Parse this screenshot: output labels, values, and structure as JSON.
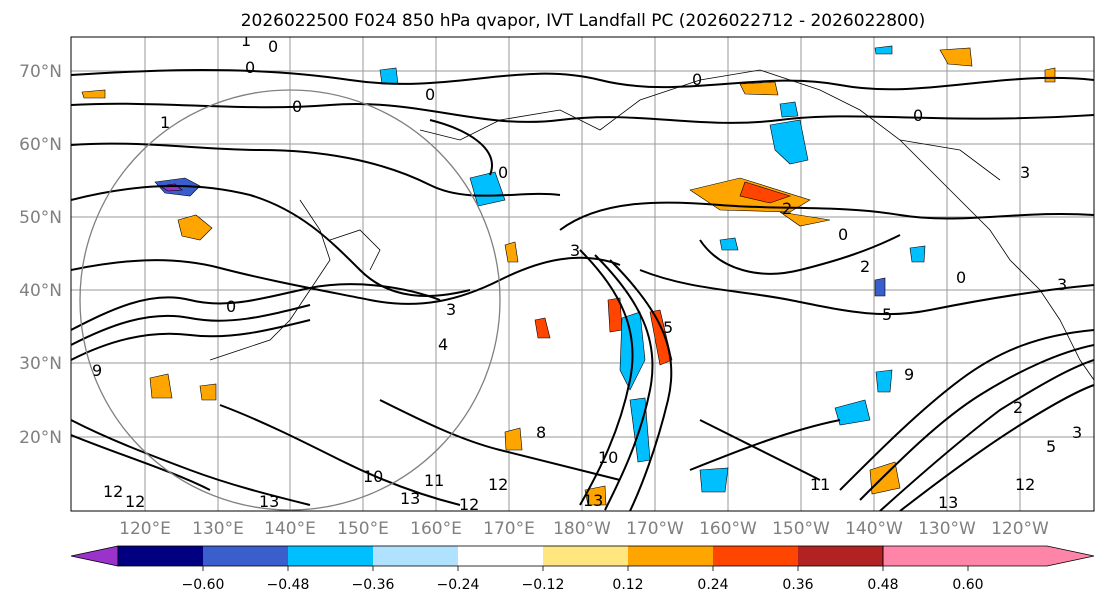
{
  "title": "2026022500 F024 850 hPa qvapor, IVT Landfall PC (2026022712 - 2026022800)",
  "lat_labels": [
    "70°N",
    "60°N",
    "50°N",
    "40°N",
    "30°N",
    "20°N"
  ],
  "lon_labels": [
    "120°E",
    "130°E",
    "140°E",
    "150°E",
    "160°E",
    "170°E",
    "180°W",
    "170°W",
    "160°W",
    "150°W",
    "140°W",
    "130°W",
    "120°W"
  ],
  "colorbar": {
    "colors": [
      "#9933cc",
      "#000080",
      "#3a5fcd",
      "#00bfff",
      "#b0e2ff",
      "#ffffff",
      "#ffe680",
      "#ffa500",
      "#ff4500",
      "#b22222",
      "#ff85a8"
    ],
    "tick_labels": [
      "−0.60",
      "−0.48",
      "−0.36",
      "−0.24",
      "−0.12",
      "0.12",
      "0.24",
      "0.36",
      "0.48",
      "0.60"
    ]
  },
  "contour_labels": [
    "1",
    "0",
    "0",
    "0",
    "0",
    "1",
    "0",
    "0",
    "0",
    "3",
    "2",
    "2",
    "0",
    "0",
    "0",
    "3",
    "4",
    "5",
    "3",
    "5",
    "9",
    "9",
    "8",
    "10",
    "11",
    "13",
    "12",
    "12",
    "13",
    "12",
    "12",
    "10",
    "13",
    "11",
    "12",
    "13",
    "3",
    "5",
    "2",
    "3"
  ]
}
